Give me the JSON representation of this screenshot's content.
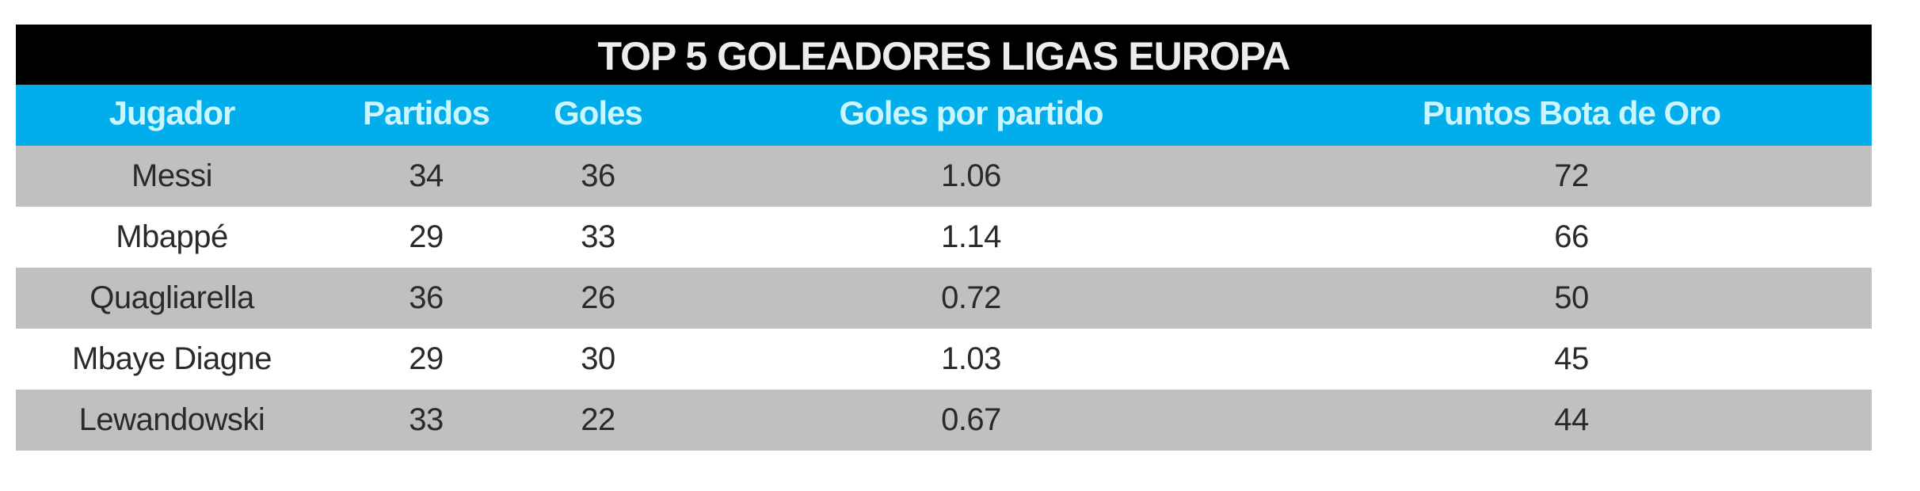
{
  "title": "TOP 5 GOLEADORES LIGAS EUROPA",
  "colors": {
    "title_bg": "#000000",
    "header_bg": "#02adec",
    "header_text": "#c9f6ff",
    "row_gray": "#c0c0c0",
    "row_white": "#ffffff"
  },
  "columns": [
    "Jugador",
    "Partidos",
    "Goles",
    "Goles por partido",
    "Puntos Bota de Oro"
  ],
  "rows": [
    [
      "Messi",
      "34",
      "36",
      "1.06",
      "72"
    ],
    [
      "Mbappé",
      "29",
      "33",
      "1.14",
      "66"
    ],
    [
      "Quagliarella",
      "36",
      "26",
      "0.72",
      "50"
    ],
    [
      "Mbaye Diagne",
      "29",
      "30",
      "1.03",
      "45"
    ],
    [
      "Lewandowski",
      "33",
      "22",
      "0.67",
      "44"
    ]
  ],
  "chart_data": {
    "type": "table",
    "title": "TOP 5 GOLEADORES LIGAS EUROPA",
    "columns": [
      "Jugador",
      "Partidos",
      "Goles",
      "Goles por partido",
      "Puntos Bota de Oro"
    ],
    "rows": [
      [
        "Messi",
        34,
        36,
        1.06,
        72
      ],
      [
        "Mbappé",
        29,
        33,
        1.14,
        66
      ],
      [
        "Quagliarella",
        36,
        26,
        0.72,
        50
      ],
      [
        "Mbaye Diagne",
        29,
        30,
        1.03,
        45
      ],
      [
        "Lewandowski",
        33,
        22,
        0.67,
        44
      ]
    ]
  }
}
